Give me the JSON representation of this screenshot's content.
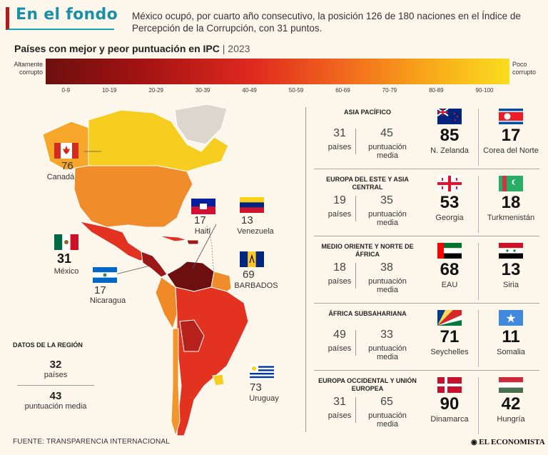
{
  "header": {
    "title": "En el fondo",
    "description": "México ocupó, por cuarto año consecutivo, la posición 126 de 180 naciones en el Índice de Percepción de la Corrupción, con 31 puntos."
  },
  "ipc": {
    "title": "Países con mejor y peor puntuación en IPC",
    "year": "2023",
    "scale_left": "Altamente corrupto",
    "scale_right": "Poco corrupto",
    "ticks": [
      "0-9",
      "10-19",
      "20-29",
      "30-39",
      "40-49",
      "50-59",
      "60-69",
      "70-79",
      "80-89",
      "90-100"
    ]
  },
  "map": {
    "countries": [
      {
        "name": "Canadá",
        "score": "76"
      },
      {
        "name": "Haití",
        "score": "17"
      },
      {
        "name": "Venezuela",
        "score": "13"
      },
      {
        "name": "México",
        "score": "31"
      },
      {
        "name": "BARBADOS",
        "score": "69"
      },
      {
        "name": "Nicaragua",
        "score": "17"
      },
      {
        "name": "Uruguay",
        "score": "73"
      }
    ],
    "region_stats": {
      "title": "DATOS DE LA REGIÓN",
      "countries_value": "32",
      "countries_label": "países",
      "avg_value": "43",
      "avg_label": "puntuación media"
    }
  },
  "regions": [
    {
      "name": "ASIA PACÍFICO",
      "count": "31",
      "count_label": "países",
      "avg": "45",
      "avg_label": "puntuación media",
      "best_score": "85",
      "best_name": "N. Zelanda",
      "worst_score": "17",
      "worst_name": "Corea del Norte"
    },
    {
      "name": "EUROPA DEL ESTE Y ASIA CENTRAL",
      "count": "19",
      "count_label": "países",
      "avg": "35",
      "avg_label": "puntuación media",
      "best_score": "53",
      "best_name": "Georgia",
      "worst_score": "18",
      "worst_name": "Turkmenistán"
    },
    {
      "name": "MEDIO ORIENTE Y NORTE DE ÁFRICA",
      "count": "18",
      "count_label": "países",
      "avg": "38",
      "avg_label": "puntuación media",
      "best_score": "68",
      "best_name": "EAU",
      "worst_score": "13",
      "worst_name": "Siria"
    },
    {
      "name": "ÁFRICA SUBSAHARIANA",
      "count": "49",
      "count_label": "países",
      "avg": "33",
      "avg_label": "puntuación media",
      "best_score": "71",
      "best_name": "Seychelles",
      "worst_score": "11",
      "worst_name": "Somalia"
    },
    {
      "name": "EUROPA OCCIDENTAL Y UNIÓN EUROPEA",
      "count": "31",
      "count_label": "países",
      "avg": "65",
      "avg_label": "puntuación media",
      "best_score": "90",
      "best_name": "Dinamarca",
      "worst_score": "42",
      "worst_name": "Hungría"
    }
  ],
  "footer": {
    "source": "FUENTE: TRANSPARENCIA INTERNACIONAL",
    "brand": "EL ECONOMISTA"
  }
}
